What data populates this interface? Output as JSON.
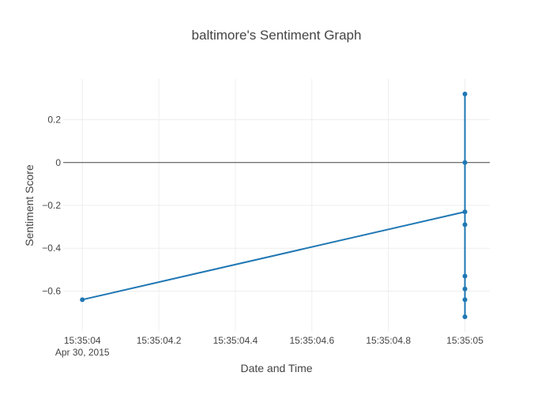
{
  "chart_data": {
    "type": "line",
    "title": "baltimore's Sentiment Graph",
    "xlabel": "Date and Time",
    "ylabel": "Sentiment Score",
    "x_ticks": [
      {
        "value": 0.0,
        "label": "15:35:04",
        "sublabel": "Apr 30, 2015"
      },
      {
        "value": 0.2,
        "label": "15:35:04.2",
        "sublabel": ""
      },
      {
        "value": 0.4,
        "label": "15:35:04.4",
        "sublabel": ""
      },
      {
        "value": 0.6,
        "label": "15:35:04.6",
        "sublabel": ""
      },
      {
        "value": 0.8,
        "label": "15:35:04.8",
        "sublabel": ""
      },
      {
        "value": 1.0,
        "label": "15:35:05",
        "sublabel": ""
      }
    ],
    "y_ticks": [
      {
        "value": 0.2,
        "label": "0.2"
      },
      {
        "value": 0.0,
        "label": "0"
      },
      {
        "value": -0.2,
        "label": "−0.2"
      },
      {
        "value": -0.4,
        "label": "−0.4"
      },
      {
        "value": -0.6,
        "label": "−0.6"
      }
    ],
    "xlim": [
      -0.05,
      1.065
    ],
    "ylim": [
      -0.79,
      0.39
    ],
    "grid": true,
    "zero_line": true,
    "series": [
      {
        "color": "#1f77b4",
        "x": [
          0.0,
          1.0,
          1.0,
          1.0,
          1.0,
          1.0,
          1.0,
          1.0,
          1.0
        ],
        "y": [
          -0.64,
          -0.23,
          -0.29,
          -0.53,
          -0.59,
          -0.64,
          -0.72,
          0.0,
          0.32
        ]
      }
    ]
  }
}
